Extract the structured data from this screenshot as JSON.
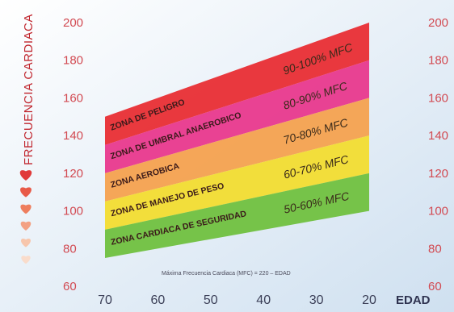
{
  "chart_data": {
    "type": "area",
    "xlabel": "EDAD",
    "ylabel": "FRECUENCIA CARDIACA",
    "xlim": [
      70,
      20
    ],
    "ylim": [
      60,
      200
    ],
    "x_ticks": [
      "70",
      "60",
      "50",
      "40",
      "30",
      "20"
    ],
    "y_ticks": [
      "60",
      "80",
      "100",
      "120",
      "140",
      "160",
      "180",
      "200"
    ],
    "x": [
      70,
      20
    ],
    "series": [
      {
        "name": "ZONA DE PELIGRO",
        "label": "90-100% MFC",
        "lower": [
          135,
          180
        ],
        "upper": [
          150,
          200
        ],
        "color": "#e8282e"
      },
      {
        "name": "ZONA DE UMBRAL ANAEROBICO",
        "label": "80-90% MFC",
        "lower": [
          120,
          160
        ],
        "upper": [
          135,
          180
        ],
        "color": "#e8338a"
      },
      {
        "name": "ZONA AEROBICA",
        "label": "70-80% MFC",
        "lower": [
          105,
          140
        ],
        "upper": [
          120,
          160
        ],
        "color": "#f5a04a"
      },
      {
        "name": "ZONA DE MANEJO DE PESO",
        "label": "60-70% MFC",
        "lower": [
          90,
          120
        ],
        "upper": [
          105,
          140
        ],
        "color": "#f3dc2a"
      },
      {
        "name": "ZONA CARDIACA DE SEGURIDAD",
        "label": "50-60% MFC",
        "lower": [
          75,
          100
        ],
        "upper": [
          90,
          120
        ],
        "color": "#6cbf3a"
      }
    ],
    "annotation": "Máxima Frecuencia Cardiaca (MFC) = 220 – EDAD",
    "grid": false,
    "legend": "none"
  },
  "colors": {
    "tick_text": "#d24a52",
    "heart_shades": [
      "#e03a3a",
      "#e85a48",
      "#ee7e5e",
      "#f3a184",
      "#f7c6ac",
      "#f9dccb"
    ]
  }
}
